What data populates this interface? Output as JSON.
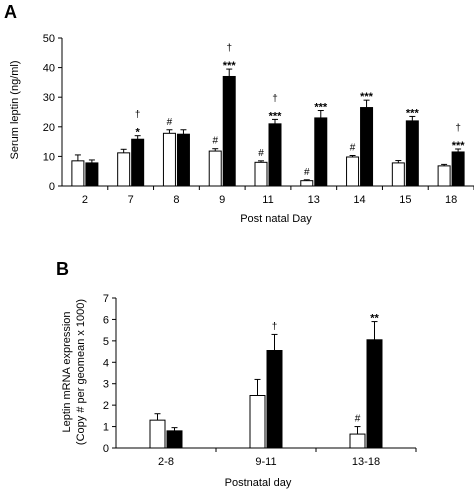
{
  "chart_data": [
    {
      "panel": "A",
      "type": "bar",
      "xlabel": "Post natal Day",
      "ylabel": "Serum leptin (ng/ml)",
      "ylim": [
        0,
        50
      ],
      "yticks": [
        0,
        10,
        20,
        30,
        40,
        50
      ],
      "categories": [
        "2",
        "7",
        "8",
        "9",
        "11",
        "13",
        "14",
        "15",
        "18"
      ],
      "series": [
        {
          "fill": "#ffffff",
          "values": [
            8.5,
            11.2,
            17.8,
            11.8,
            8.0,
            1.8,
            9.8,
            7.8,
            6.8
          ],
          "errors": [
            2.0,
            1.2,
            1.2,
            0.8,
            0.5,
            0.3,
            0.5,
            0.8,
            0.5
          ]
        },
        {
          "fill": "#000000",
          "values": [
            7.8,
            15.8,
            17.5,
            37.0,
            21.0,
            23.0,
            26.5,
            22.0,
            11.5
          ],
          "errors": [
            1.0,
            1.2,
            1.5,
            2.5,
            1.5,
            2.5,
            2.5,
            1.5,
            1.0
          ]
        }
      ],
      "annotations": [
        {
          "category": "7",
          "series": 1,
          "lines": [
            "†",
            "*"
          ]
        },
        {
          "category": "8",
          "series": 0,
          "lines": [
            "#"
          ]
        },
        {
          "category": "9",
          "series": 0,
          "lines": [
            "#"
          ]
        },
        {
          "category": "9",
          "series": 1,
          "lines": [
            "†",
            "***"
          ]
        },
        {
          "category": "11",
          "series": 0,
          "lines": [
            "#"
          ]
        },
        {
          "category": "11",
          "series": 1,
          "lines": [
            "†",
            "***"
          ]
        },
        {
          "category": "13",
          "series": 0,
          "lines": [
            "#"
          ]
        },
        {
          "category": "13",
          "series": 1,
          "lines": [
            "***"
          ]
        },
        {
          "category": "14",
          "series": 0,
          "lines": [
            "#"
          ]
        },
        {
          "category": "14",
          "series": 1,
          "lines": [
            "***"
          ]
        },
        {
          "category": "15",
          "series": 1,
          "lines": [
            "***"
          ]
        },
        {
          "category": "18",
          "series": 1,
          "lines": [
            "†",
            "***"
          ]
        }
      ]
    },
    {
      "panel": "B",
      "type": "bar",
      "xlabel": "Postnatal day",
      "ylabel": "Leptin mRNA expression",
      "ylabel2": "(Copy # per geomean x 1000)",
      "ylim": [
        0,
        7
      ],
      "yticks": [
        0,
        1,
        2,
        3,
        4,
        5,
        6,
        7
      ],
      "categories": [
        "2-8",
        "9-11",
        "13-18"
      ],
      "series": [
        {
          "fill": "#ffffff",
          "values": [
            1.3,
            2.45,
            0.65
          ],
          "errors": [
            0.3,
            0.75,
            0.35
          ]
        },
        {
          "fill": "#000000",
          "values": [
            0.8,
            4.55,
            5.05
          ],
          "errors": [
            0.15,
            0.75,
            0.85
          ]
        }
      ],
      "annotations": [
        {
          "category": "9-11",
          "series": 1,
          "lines": [
            "†"
          ]
        },
        {
          "category": "13-18",
          "series": 0,
          "lines": [
            "#"
          ]
        },
        {
          "category": "13-18",
          "series": 1,
          "lines": [
            "**"
          ]
        }
      ]
    }
  ]
}
